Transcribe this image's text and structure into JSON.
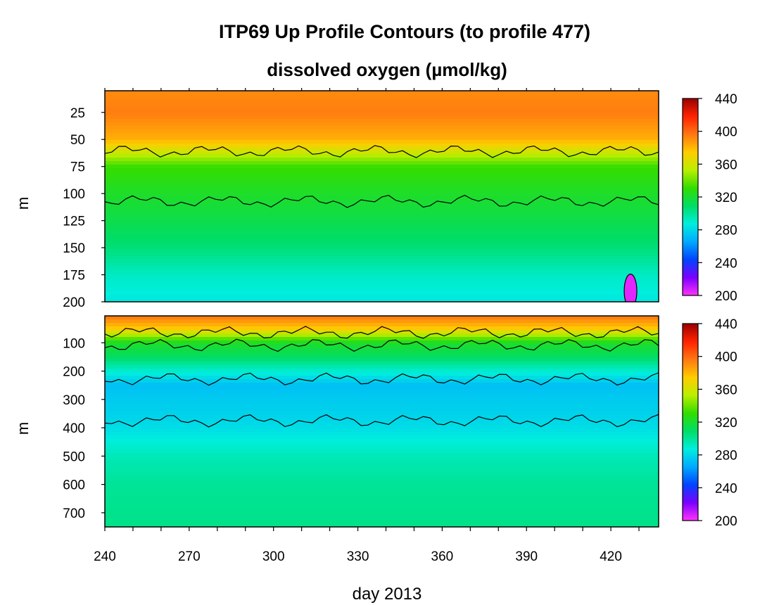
{
  "title": "ITP69 Up Profile Contours (to profile 477)",
  "subtitle": "dissolved oxygen (µmol/kg)",
  "colors": {
    "colormap": [
      "#ff33ff",
      "#7a00ff",
      "#0044ff",
      "#00aaff",
      "#00eedd",
      "#00dd66",
      "#33dd00",
      "#bbee00",
      "#ffcc00",
      "#ff7711",
      "#ff2200",
      "#990000"
    ],
    "contour_line": "#000000"
  },
  "chart_data": [
    {
      "type": "heatmap",
      "panel": "upper",
      "variable": "dissolved oxygen",
      "xlabel": "day 2013",
      "ylabel": "m",
      "xlim": [
        240,
        437
      ],
      "ylim": [
        200,
        5
      ],
      "x_ticks": [
        240,
        270,
        300,
        330,
        360,
        390,
        420
      ],
      "y_ticks": [
        25,
        50,
        75,
        100,
        125,
        150,
        175,
        200
      ],
      "colorbar": {
        "min": 200,
        "max": 440,
        "ticks": [
          200,
          240,
          280,
          320,
          360,
          400,
          440
        ]
      },
      "contour_levels": [
        240,
        280,
        320,
        360,
        400
      ],
      "oxygen_by_depth": {
        "depth": [
          10,
          25,
          50,
          75,
          100,
          125,
          150,
          175,
          200
        ],
        "value": [
          392,
          395,
          382,
          332,
          322,
          315,
          306,
          292,
          285
        ]
      },
      "oxygen_minimum": {
        "day": 427,
        "depth": 190,
        "value": 205
      }
    },
    {
      "type": "heatmap",
      "panel": "lower",
      "variable": "dissolved oxygen",
      "xlabel": "day 2013",
      "ylabel": "m",
      "xlim": [
        240,
        437
      ],
      "ylim": [
        750,
        5
      ],
      "x_ticks": [
        240,
        270,
        300,
        330,
        360,
        390,
        420
      ],
      "y_ticks": [
        100,
        200,
        300,
        400,
        500,
        600,
        700
      ],
      "colorbar": {
        "min": 200,
        "max": 440,
        "ticks": [
          200,
          240,
          280,
          320,
          360,
          400,
          440
        ]
      },
      "contour_levels": [
        280,
        320,
        360,
        400
      ],
      "oxygen_by_depth": {
        "depth": [
          10,
          50,
          100,
          150,
          200,
          250,
          300,
          350,
          400,
          500,
          600,
          700,
          750
        ],
        "value": [
          395,
          375,
          322,
          310,
          290,
          272,
          276,
          278,
          282,
          294,
          300,
          302,
          303
        ]
      }
    }
  ]
}
